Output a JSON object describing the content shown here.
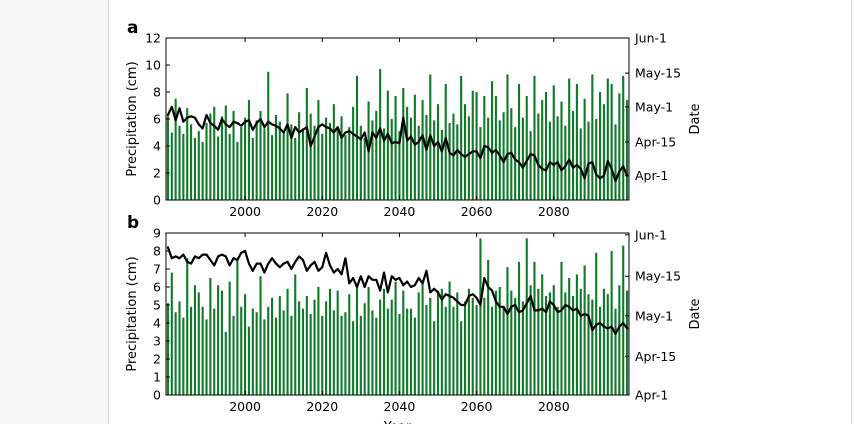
{
  "figure": {
    "bar_color": "#107a2a",
    "line_color": "#000000",
    "x_tick_labels": [
      "2000",
      "2020",
      "2040",
      "2060",
      "2080"
    ]
  },
  "chart_data": [
    {
      "panel_label": "a",
      "type": "bar",
      "xlabel": "",
      "ylabel": "Precipitation (cm)",
      "y2label": "Date",
      "xlim": [
        1980,
        2099
      ],
      "ylim": [
        0,
        12
      ],
      "yticks": [
        0,
        2,
        4,
        6,
        8,
        10,
        12
      ],
      "y2_tick_labels": [
        "Apr-1",
        "Apr-15",
        "May-1",
        "May-15",
        "Jun-1"
      ],
      "y2_tick_values": [
        1.8,
        4.3,
        6.9,
        9.4,
        12
      ],
      "grid": false,
      "series": [
        {
          "type": "bar",
          "x": [
            1980,
            1981,
            1982,
            1983,
            1984,
            1985,
            1986,
            1987,
            1988,
            1989,
            1990,
            1991,
            1992,
            1993,
            1994,
            1995,
            1996,
            1997,
            1998,
            1999,
            2000,
            2001,
            2002,
            2003,
            2004,
            2005,
            2006,
            2007,
            2008,
            2009,
            2010,
            2011,
            2012,
            2013,
            2014,
            2015,
            2016,
            2017,
            2018,
            2019,
            2020,
            2021,
            2022,
            2023,
            2024,
            2025,
            2026,
            2027,
            2028,
            2029,
            2030,
            2031,
            2032,
            2033,
            2034,
            2035,
            2036,
            2037,
            2038,
            2039,
            2040,
            2041,
            2042,
            2043,
            2044,
            2045,
            2046,
            2047,
            2048,
            2049,
            2050,
            2051,
            2052,
            2053,
            2054,
            2055,
            2056,
            2057,
            2058,
            2059,
            2060,
            2061,
            2062,
            2063,
            2064,
            2065,
            2066,
            2067,
            2068,
            2069,
            2070,
            2071,
            2072,
            2073,
            2074,
            2075,
            2076,
            2077,
            2078,
            2079,
            2080,
            2081,
            2082,
            2083,
            2084,
            2085,
            2086,
            2087,
            2088,
            2089,
            2090,
            2091,
            2092,
            2093,
            2094,
            2095,
            2096,
            2097,
            2098,
            2099
          ],
          "values": [
            6.2,
            5.0,
            7.5,
            5.5,
            4.9,
            6.8,
            5.6,
            4.6,
            5.1,
            4.3,
            5.7,
            6.4,
            6.9,
            4.7,
            6.2,
            7.0,
            4.9,
            6.6,
            4.3,
            5.4,
            6.1,
            7.4,
            4.6,
            5.9,
            6.6,
            5.3,
            9.5,
            4.8,
            6.3,
            5.8,
            5.1,
            7.9,
            5.6,
            4.6,
            6.5,
            5.3,
            8.3,
            6.4,
            5.5,
            7.4,
            4.9,
            6.1,
            5.7,
            7.1,
            5.2,
            6.2,
            4.8,
            5.4,
            6.9,
            9.2,
            5.5,
            4.6,
            7.3,
            5.9,
            6.6,
            9.7,
            5.3,
            8.1,
            6.0,
            7.7,
            5.1,
            8.3,
            6.9,
            6.1,
            7.8,
            5.5,
            7.4,
            6.3,
            9.3,
            5.9,
            7.1,
            5.2,
            8.6,
            5.7,
            6.4,
            5.6,
            9.2,
            7.1,
            6.2,
            8.1,
            8.0,
            5.4,
            7.7,
            6.1,
            8.8,
            7.7,
            5.9,
            6.5,
            9.3,
            6.8,
            5.4,
            8.6,
            6.1,
            7.7,
            5.1,
            9.2,
            6.4,
            7.4,
            8.0,
            5.8,
            8.5,
            6.2,
            7.3,
            5.5,
            9.0,
            6.6,
            8.6,
            5.3,
            7.5,
            5.8,
            9.3,
            6.0,
            8.0,
            7.1,
            9.0,
            8.6,
            5.6,
            7.9,
            9.2,
            7.4
          ]
        },
        {
          "type": "line",
          "x": [
            1980,
            1981,
            1982,
            1983,
            1984,
            1985,
            1986,
            1987,
            1988,
            1989,
            1990,
            1991,
            1992,
            1993,
            1994,
            1995,
            1996,
            1997,
            1998,
            1999,
            2000,
            2001,
            2002,
            2003,
            2004,
            2005,
            2006,
            2007,
            2008,
            2009,
            2010,
            2011,
            2012,
            2013,
            2014,
            2015,
            2016,
            2017,
            2018,
            2019,
            2020,
            2021,
            2022,
            2023,
            2024,
            2025,
            2026,
            2027,
            2028,
            2029,
            2030,
            2031,
            2032,
            2033,
            2034,
            2035,
            2036,
            2037,
            2038,
            2039,
            2040,
            2041,
            2042,
            2043,
            2044,
            2045,
            2046,
            2047,
            2048,
            2049,
            2050,
            2051,
            2052,
            2053,
            2054,
            2055,
            2056,
            2057,
            2058,
            2059,
            2060,
            2061,
            2062,
            2063,
            2064,
            2065,
            2066,
            2067,
            2068,
            2069,
            2070,
            2071,
            2072,
            2073,
            2074,
            2075,
            2076,
            2077,
            2078,
            2079,
            2080,
            2081,
            2082,
            2083,
            2084,
            2085,
            2086,
            2087,
            2088,
            2089,
            2090,
            2091,
            2092,
            2093,
            2094,
            2095,
            2096,
            2097,
            2098,
            2099
          ],
          "values": [
            6.3,
            6.9,
            5.9,
            6.8,
            5.8,
            6.1,
            6.2,
            6.1,
            5.6,
            5.3,
            6.3,
            5.7,
            5.5,
            5.2,
            6.0,
            5.6,
            5.4,
            5.8,
            5.7,
            5.5,
            5.8,
            5.9,
            5.2,
            5.7,
            6.0,
            5.4,
            5.8,
            5.6,
            5.5,
            5.3,
            5.0,
            5.6,
            4.6,
            5.4,
            5.0,
            5.2,
            5.4,
            4.0,
            4.7,
            5.4,
            5.6,
            5.4,
            5.3,
            5.0,
            5.4,
            4.6,
            5.0,
            5.1,
            4.9,
            4.7,
            4.5,
            5.0,
            3.6,
            5.0,
            4.6,
            5.3,
            4.4,
            4.9,
            4.2,
            4.3,
            4.2,
            6.1,
            4.4,
            4.7,
            4.1,
            4.3,
            4.8,
            3.7,
            4.8,
            4.0,
            4.3,
            3.6,
            4.6,
            3.5,
            3.3,
            3.7,
            3.4,
            3.2,
            3.4,
            3.6,
            3.6,
            3.1,
            4.0,
            3.9,
            3.5,
            3.7,
            3.3,
            2.8,
            3.4,
            3.5,
            3.0,
            2.8,
            2.4,
            2.9,
            3.4,
            3.3,
            2.6,
            2.3,
            2.2,
            2.8,
            2.6,
            2.8,
            2.2,
            2.5,
            3.0,
            2.4,
            2.6,
            2.3,
            1.6,
            2.7,
            2.8,
            1.9,
            1.6,
            1.8,
            2.9,
            2.3,
            1.4,
            2.1,
            2.5,
            1.8
          ]
        }
      ]
    },
    {
      "panel_label": "b",
      "type": "bar",
      "xlabel": "Year",
      "ylabel": "Precipitation (cm)",
      "y2label": "Date",
      "xlim": [
        1980,
        2099
      ],
      "ylim": [
        0,
        9
      ],
      "yticks": [
        0,
        1,
        2,
        3,
        4,
        5,
        6,
        7,
        8,
        9
      ],
      "y2_tick_labels": [
        "Apr-1",
        "Apr-15",
        "May-1",
        "May-15",
        "Jun-1"
      ],
      "y2_tick_values": [
        0,
        2.15,
        4.4,
        6.6,
        8.9
      ],
      "grid": false,
      "series": [
        {
          "type": "bar",
          "x": [
            1980,
            1981,
            1982,
            1983,
            1984,
            1985,
            1986,
            1987,
            1988,
            1989,
            1990,
            1991,
            1992,
            1993,
            1994,
            1995,
            1996,
            1997,
            1998,
            1999,
            2000,
            2001,
            2002,
            2003,
            2004,
            2005,
            2006,
            2007,
            2008,
            2009,
            2010,
            2011,
            2012,
            2013,
            2014,
            2015,
            2016,
            2017,
            2018,
            2019,
            2020,
            2021,
            2022,
            2023,
            2024,
            2025,
            2026,
            2027,
            2028,
            2029,
            2030,
            2031,
            2032,
            2033,
            2034,
            2035,
            2036,
            2037,
            2038,
            2039,
            2040,
            2041,
            2042,
            2043,
            2044,
            2045,
            2046,
            2047,
            2048,
            2049,
            2050,
            2051,
            2052,
            2053,
            2054,
            2055,
            2056,
            2057,
            2058,
            2059,
            2060,
            2061,
            2062,
            2063,
            2064,
            2065,
            2066,
            2067,
            2068,
            2069,
            2070,
            2071,
            2072,
            2073,
            2074,
            2075,
            2076,
            2077,
            2078,
            2079,
            2080,
            2081,
            2082,
            2083,
            2084,
            2085,
            2086,
            2087,
            2088,
            2089,
            2090,
            2091,
            2092,
            2093,
            2094,
            2095,
            2096,
            2097,
            2098,
            2099
          ],
          "values": [
            5.1,
            6.8,
            4.6,
            5.2,
            4.3,
            7.6,
            4.9,
            6.1,
            5.7,
            4.9,
            4.2,
            6.5,
            4.8,
            6.1,
            5.8,
            3.5,
            6.3,
            4.4,
            7.5,
            4.9,
            5.6,
            3.8,
            4.8,
            4.6,
            6.6,
            4.2,
            4.9,
            5.4,
            4.3,
            5.5,
            4.7,
            5.9,
            4.4,
            6.7,
            5.2,
            4.8,
            5.5,
            4.5,
            5.3,
            6.0,
            4.4,
            5.2,
            5.9,
            4.7,
            5.8,
            4.4,
            4.6,
            5.6,
            4.1,
            6.2,
            4.4,
            5.1,
            6.0,
            4.7,
            4.3,
            5.3,
            5.9,
            4.8,
            5.3,
            6.3,
            4.5,
            5.8,
            4.8,
            4.8,
            4.3,
            5.7,
            6.2,
            5.0,
            5.4,
            4.1,
            5.8,
            5.9,
            4.9,
            6.3,
            4.9,
            5.7,
            4.1,
            5.2,
            5.9,
            5.4,
            5.0,
            8.7,
            5.4,
            7.5,
            4.9,
            5.8,
            6.0,
            4.9,
            7.1,
            5.8,
            5.4,
            7.4,
            5.2,
            8.7,
            6.1,
            7.4,
            5.9,
            6.7,
            5.5,
            5.7,
            6.1,
            4.9,
            7.4,
            5.7,
            6.5,
            5.5,
            6.7,
            5.9,
            7.2,
            5.6,
            5.3,
            7.9,
            4.9,
            5.9,
            5.6,
            8.0,
            4.8,
            6.1,
            8.3,
            5.8
          ]
        },
        {
          "type": "line",
          "x": [
            1980,
            1981,
            1982,
            1983,
            1984,
            1985,
            1986,
            1987,
            1988,
            1989,
            1990,
            1991,
            1992,
            1993,
            1994,
            1995,
            1996,
            1997,
            1998,
            1999,
            2000,
            2001,
            2002,
            2003,
            2004,
            2005,
            2006,
            2007,
            2008,
            2009,
            2010,
            2011,
            2012,
            2013,
            2014,
            2015,
            2016,
            2017,
            2018,
            2019,
            2020,
            2021,
            2022,
            2023,
            2024,
            2025,
            2026,
            2027,
            2028,
            2029,
            2030,
            2031,
            2032,
            2033,
            2034,
            2035,
            2036,
            2037,
            2038,
            2039,
            2040,
            2041,
            2042,
            2043,
            2044,
            2045,
            2046,
            2047,
            2048,
            2049,
            2050,
            2051,
            2052,
            2053,
            2054,
            2055,
            2056,
            2057,
            2058,
            2059,
            2060,
            2061,
            2062,
            2063,
            2064,
            2065,
            2066,
            2067,
            2068,
            2069,
            2070,
            2071,
            2072,
            2073,
            2074,
            2075,
            2076,
            2077,
            2078,
            2079,
            2080,
            2081,
            2082,
            2083,
            2084,
            2085,
            2086,
            2087,
            2088,
            2089,
            2090,
            2091,
            2092,
            2093,
            2094,
            2095,
            2096,
            2097,
            2098,
            2099
          ],
          "values": [
            8.2,
            7.6,
            7.7,
            7.6,
            7.8,
            7.4,
            7.3,
            7.7,
            7.6,
            7.8,
            7.8,
            7.5,
            7.2,
            7.7,
            7.8,
            7.7,
            7.2,
            7.6,
            7.5,
            7.9,
            8.0,
            7.3,
            6.9,
            7.3,
            7.3,
            6.8,
            7.3,
            7.6,
            7.3,
            7.1,
            7.3,
            7.4,
            7.0,
            7.4,
            7.7,
            7.5,
            6.9,
            7.2,
            7.4,
            6.9,
            7.1,
            7.9,
            7.2,
            6.8,
            7.0,
            6.7,
            7.6,
            6.2,
            6.5,
            6.0,
            6.6,
            6.0,
            6.6,
            6.4,
            6.4,
            5.8,
            6.8,
            5.7,
            6.6,
            6.4,
            6.5,
            6.1,
            6.3,
            6.0,
            6.1,
            6.5,
            6.2,
            6.9,
            5.7,
            5.9,
            5.7,
            5.3,
            5.6,
            5.5,
            5.4,
            5.2,
            5.0,
            5.0,
            5.5,
            5.6,
            5.4,
            5.0,
            6.5,
            6.0,
            5.8,
            5.2,
            4.9,
            4.9,
            4.5,
            4.9,
            5.0,
            4.6,
            4.7,
            5.1,
            5.5,
            4.7,
            4.7,
            4.8,
            4.6,
            5.2,
            5.0,
            4.6,
            4.7,
            5.0,
            4.9,
            4.7,
            4.8,
            4.4,
            4.5,
            4.4,
            3.6,
            3.9,
            4.0,
            3.8,
            3.7,
            3.8,
            3.4,
            3.8,
            4.0,
            3.7
          ]
        }
      ]
    }
  ]
}
